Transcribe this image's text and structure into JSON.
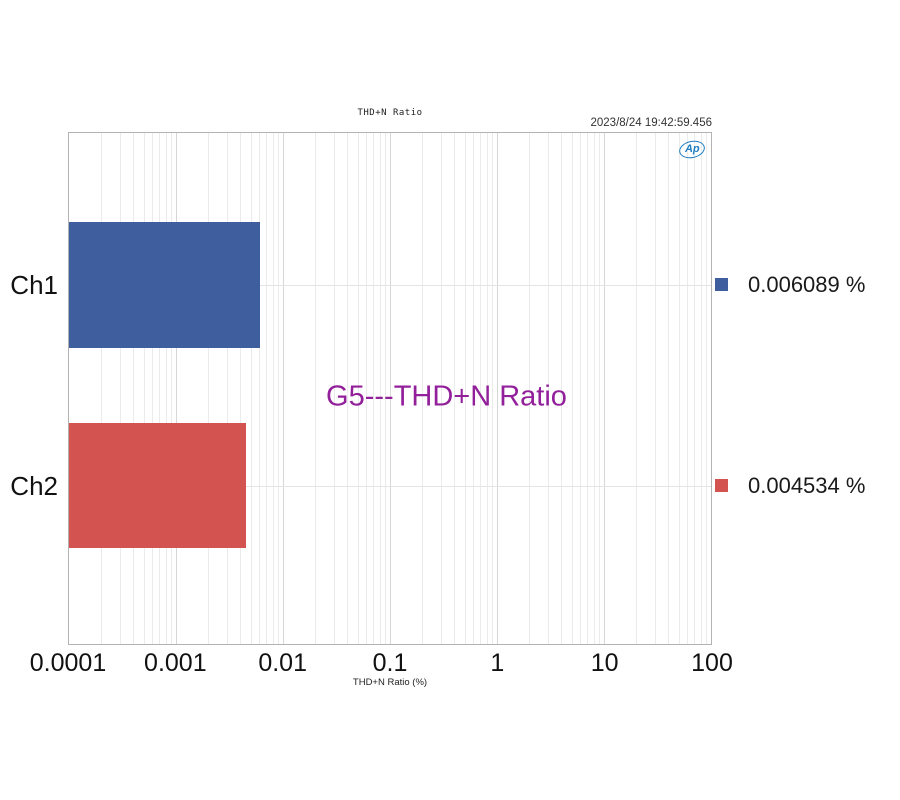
{
  "header": {
    "title": "THD+N Ratio",
    "timestamp": "2023/8/24 19:42:59.456",
    "logo_text": "Ap"
  },
  "annotation": {
    "text": "G5---THD+N Ratio",
    "color": "#93209B"
  },
  "legend": {
    "position": "right",
    "items": [
      {
        "label": "0.006089 %",
        "color": "#3F5E9D"
      },
      {
        "label": "0.004534 %",
        "color": "#D2534F"
      }
    ]
  },
  "chart_data": {
    "type": "bar",
    "orientation": "horizontal",
    "x_scale": "log",
    "title": "THD+N Ratio",
    "xlabel": "THD+N Ratio (%)",
    "categories": [
      "Ch1",
      "Ch2"
    ],
    "values": [
      0.006089,
      0.004534
    ],
    "value_labels": [
      "0.006089 %",
      "0.004534 %"
    ],
    "colors": [
      "#3F5E9D",
      "#D2534F"
    ],
    "xlim": [
      0.0001,
      100
    ],
    "x_ticks": [
      0.0001,
      0.001,
      0.01,
      0.1,
      1,
      10,
      100
    ],
    "x_tick_labels": [
      "0.0001",
      "0.001",
      "0.01",
      "0.1",
      "1",
      "10",
      "100"
    ],
    "grid": true,
    "legend_position": "right",
    "annotation_text": "G5---THD+N Ratio"
  }
}
